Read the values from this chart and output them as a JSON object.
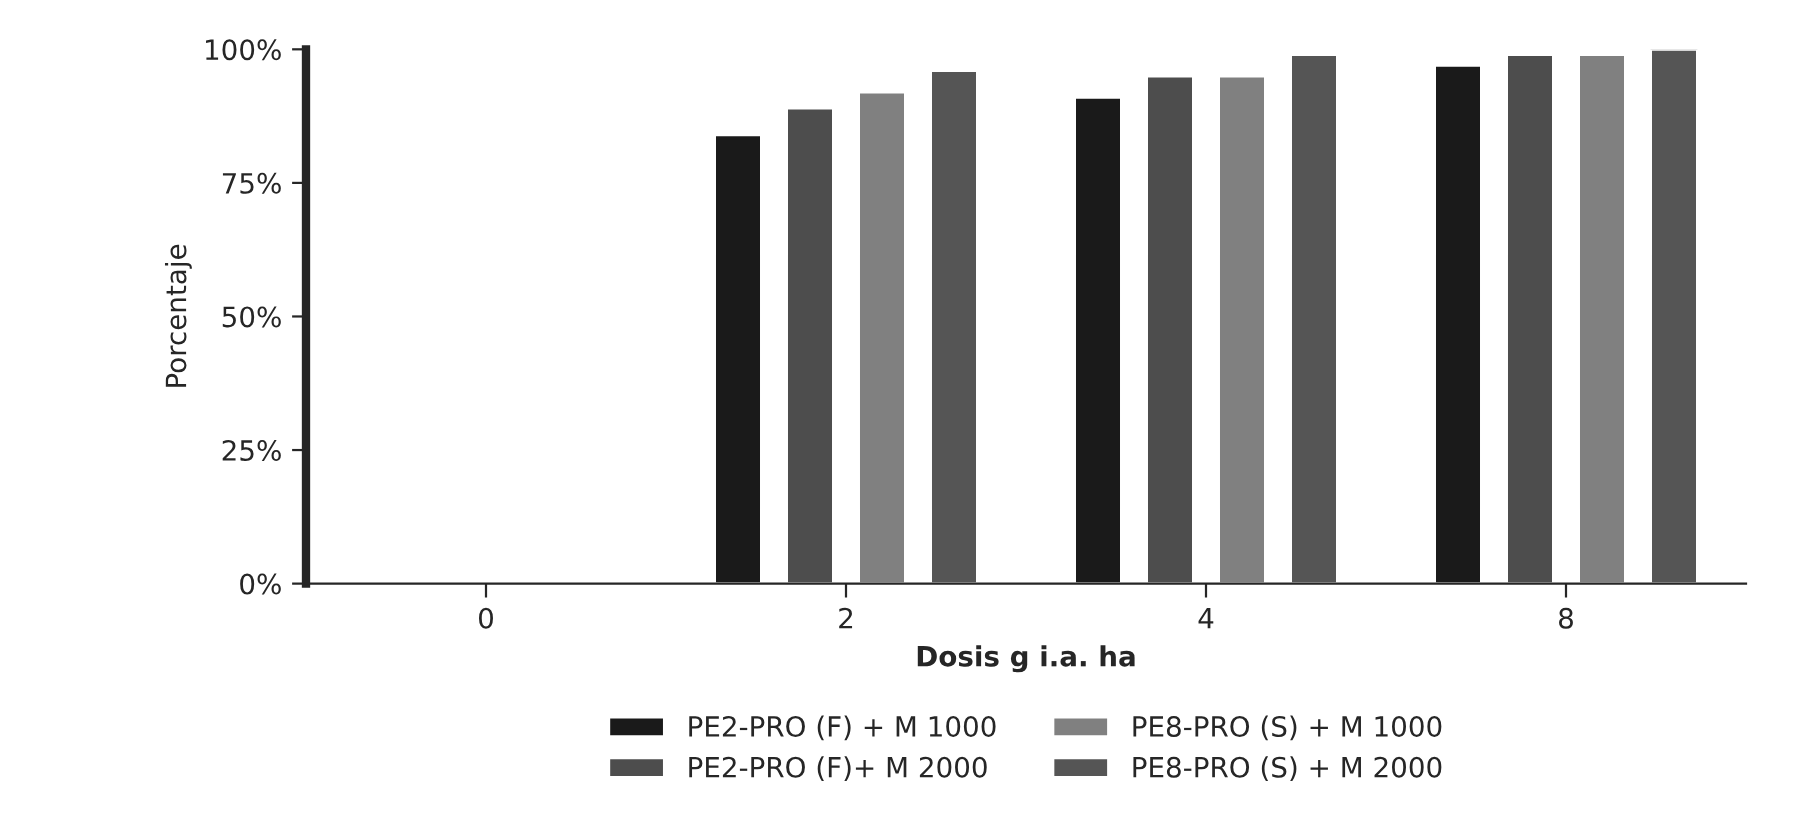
{
  "chart_data": {
    "type": "bar",
    "xlabel": "Dosis g i.a. ha",
    "ylabel": "Porcentaje",
    "categories": [
      "0",
      "2",
      "4",
      "8"
    ],
    "series": [
      {
        "name": "PE2-PRO (F) + M 1000",
        "color": "#1a1a1a",
        "values": [
          null,
          84,
          91,
          97
        ]
      },
      {
        "name": "PE2-PRO (F)+ M 2000",
        "color": "#4d4d4d",
        "values": [
          null,
          89,
          95,
          99
        ]
      },
      {
        "name": "PE8-PRO (S) + M 1000",
        "color": "#808080",
        "values": [
          null,
          92,
          95,
          99
        ]
      },
      {
        "name": "PE8-PRO (S) + M 2000",
        "color": "#555555",
        "values": [
          null,
          96,
          99,
          100
        ]
      }
    ],
    "ylim": [
      0,
      100
    ],
    "yticks": [
      {
        "value": 0,
        "label": "0%"
      },
      {
        "value": 25,
        "label": "25%"
      },
      {
        "value": 50,
        "label": "50%"
      },
      {
        "value": 75,
        "label": "75%"
      },
      {
        "value": 100,
        "label": "100%"
      }
    ],
    "grid": false,
    "legend": "bottom"
  }
}
